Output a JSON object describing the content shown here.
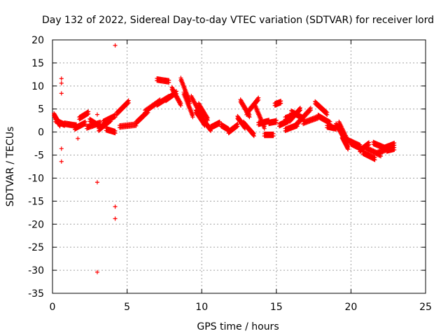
{
  "chart_data": {
    "type": "scatter",
    "title": "Day 132 of 2022, Sidereal Day-to-day VTEC variation (SDTVAR) for receiver lord",
    "xlabel": "GPS time / hours",
    "ylabel": "SDTVAR / TECUs",
    "xlim": [
      0,
      25
    ],
    "ylim": [
      -35,
      20
    ],
    "xticks": [
      0,
      5,
      10,
      15,
      20,
      25
    ],
    "yticks": [
      -35,
      -30,
      -25,
      -20,
      -15,
      -10,
      -5,
      0,
      5,
      10,
      15,
      20
    ],
    "grid": true,
    "marker": "+",
    "color": "#ff0000",
    "outliers": [
      {
        "x": 0.6,
        "y": 11.6
      },
      {
        "x": 0.6,
        "y": 10.6
      },
      {
        "x": 0.6,
        "y": 8.4
      },
      {
        "x": 0.6,
        "y": -3.6
      },
      {
        "x": 0.6,
        "y": -6.4
      },
      {
        "x": 3.0,
        "y": -10.9
      },
      {
        "x": 3.0,
        "y": -30.4
      },
      {
        "x": 4.2,
        "y": 18.8
      },
      {
        "x": 4.2,
        "y": -16.2
      },
      {
        "x": 4.2,
        "y": -18.8
      },
      {
        "x": 3.0,
        "y": 3.8
      },
      {
        "x": 1.7,
        "y": -1.4
      }
    ],
    "segments": [
      {
        "x": [
          0.1,
          0.5
        ],
        "y": [
          3.8,
          1.5
        ]
      },
      {
        "x": [
          0.2,
          0.8
        ],
        "y": [
          2.5,
          1.6
        ]
      },
      {
        "x": [
          0.8,
          1.6
        ],
        "y": [
          1.8,
          1.4
        ]
      },
      {
        "x": [
          1.5,
          2.2
        ],
        "y": [
          0.8,
          2.0
        ]
      },
      {
        "x": [
          1.8,
          2.4
        ],
        "y": [
          3.0,
          4.2
        ]
      },
      {
        "x": [
          2.3,
          3.2
        ],
        "y": [
          1.0,
          2.0
        ]
      },
      {
        "x": [
          2.5,
          3.2
        ],
        "y": [
          2.6,
          1.2
        ]
      },
      {
        "x": [
          3.1,
          3.9
        ],
        "y": [
          0.5,
          2.6
        ]
      },
      {
        "x": [
          3.4,
          4.2
        ],
        "y": [
          2.2,
          3.5
        ]
      },
      {
        "x": [
          3.6,
          4.2
        ],
        "y": [
          0.6,
          0.0
        ]
      },
      {
        "x": [
          4.3,
          5.1
        ],
        "y": [
          4.0,
          6.6
        ]
      },
      {
        "x": [
          4.5,
          5.6
        ],
        "y": [
          1.2,
          1.6
        ]
      },
      {
        "x": [
          5.6,
          6.4
        ],
        "y": [
          2.0,
          4.5
        ]
      },
      {
        "x": [
          6.2,
          7.2
        ],
        "y": [
          4.5,
          6.8
        ]
      },
      {
        "x": [
          7.0,
          7.8
        ],
        "y": [
          6.0,
          7.6
        ]
      },
      {
        "x": [
          7.0,
          7.8
        ],
        "y": [
          11.4,
          11.0
        ]
      },
      {
        "x": [
          7.6,
          8.3
        ],
        "y": [
          7.0,
          8.6
        ]
      },
      {
        "x": [
          8.0,
          8.6
        ],
        "y": [
          9.5,
          6.0
        ]
      },
      {
        "x": [
          8.6,
          9.2
        ],
        "y": [
          11.5,
          6.5
        ]
      },
      {
        "x": [
          8.8,
          9.4
        ],
        "y": [
          8.4,
          3.5
        ]
      },
      {
        "x": [
          9.3,
          10.1
        ],
        "y": [
          7.6,
          3.0
        ]
      },
      {
        "x": [
          9.6,
          10.2
        ],
        "y": [
          4.5,
          1.6
        ]
      },
      {
        "x": [
          9.8,
          10.4
        ],
        "y": [
          6.0,
          2.8
        ]
      },
      {
        "x": [
          10.0,
          10.6
        ],
        "y": [
          3.0,
          0.5
        ]
      },
      {
        "x": [
          10.6,
          11.2
        ],
        "y": [
          1.0,
          2.0
        ]
      },
      {
        "x": [
          11.3,
          11.8
        ],
        "y": [
          1.5,
          0.5
        ]
      },
      {
        "x": [
          11.8,
          12.4
        ],
        "y": [
          0.0,
          1.5
        ]
      },
      {
        "x": [
          12.4,
          12.9
        ],
        "y": [
          3.2,
          1.0
        ]
      },
      {
        "x": [
          12.6,
          13.2
        ],
        "y": [
          6.8,
          3.5
        ]
      },
      {
        "x": [
          12.8,
          13.5
        ],
        "y": [
          2.0,
          -0.6
        ]
      },
      {
        "x": [
          13.0,
          13.8
        ],
        "y": [
          4.0,
          7.2
        ]
      },
      {
        "x": [
          13.6,
          14.2
        ],
        "y": [
          5.5,
          1.0
        ]
      },
      {
        "x": [
          13.8,
          14.5
        ],
        "y": [
          1.8,
          2.4
        ]
      },
      {
        "x": [
          14.2,
          14.8
        ],
        "y": [
          -0.6,
          -0.6
        ]
      },
      {
        "x": [
          14.5,
          15.0
        ],
        "y": [
          2.0,
          2.3
        ]
      },
      {
        "x": [
          14.9,
          15.3
        ],
        "y": [
          6.0,
          6.5
        ]
      },
      {
        "x": [
          15.2,
          15.8
        ],
        "y": [
          1.5,
          2.4
        ]
      },
      {
        "x": [
          15.6,
          16.4
        ],
        "y": [
          0.5,
          1.5
        ]
      },
      {
        "x": [
          15.6,
          16.4
        ],
        "y": [
          3.0,
          4.0
        ]
      },
      {
        "x": [
          15.9,
          16.6
        ],
        "y": [
          2.5,
          5.0
        ]
      },
      {
        "x": [
          16.0,
          16.8
        ],
        "y": [
          4.4,
          3.0
        ]
      },
      {
        "x": [
          16.3,
          17.3
        ],
        "y": [
          1.5,
          5.0
        ]
      },
      {
        "x": [
          16.8,
          17.8
        ],
        "y": [
          2.0,
          3.2
        ]
      },
      {
        "x": [
          17.6,
          18.4
        ],
        "y": [
          6.4,
          4.0
        ]
      },
      {
        "x": [
          17.8,
          18.6
        ],
        "y": [
          3.5,
          2.0
        ]
      },
      {
        "x": [
          18.4,
          19.0
        ],
        "y": [
          1.2,
          0.8
        ]
      },
      {
        "x": [
          19.0,
          19.6
        ],
        "y": [
          1.6,
          -1.5
        ]
      },
      {
        "x": [
          19.2,
          19.8
        ],
        "y": [
          2.0,
          -2.0
        ]
      },
      {
        "x": [
          19.4,
          19.8
        ],
        "y": [
          -1.0,
          -3.5
        ]
      },
      {
        "x": [
          19.8,
          20.6
        ],
        "y": [
          -1.8,
          -3.0
        ]
      },
      {
        "x": [
          20.0,
          20.8
        ],
        "y": [
          -2.5,
          -3.8
        ]
      },
      {
        "x": [
          20.6,
          21.2
        ],
        "y": [
          -4.0,
          -2.5
        ]
      },
      {
        "x": [
          20.8,
          21.6
        ],
        "y": [
          -4.5,
          -5.8
        ]
      },
      {
        "x": [
          21.0,
          22.0
        ],
        "y": [
          -3.5,
          -5.0
        ]
      },
      {
        "x": [
          21.5,
          22.3
        ],
        "y": [
          -2.4,
          -3.5
        ]
      },
      {
        "x": [
          21.8,
          22.8
        ],
        "y": [
          -4.5,
          -3.2
        ]
      },
      {
        "x": [
          22.2,
          22.9
        ],
        "y": [
          -3.5,
          -2.6
        ]
      },
      {
        "x": [
          22.4,
          22.9
        ],
        "y": [
          -4.0,
          -3.6
        ]
      }
    ]
  }
}
